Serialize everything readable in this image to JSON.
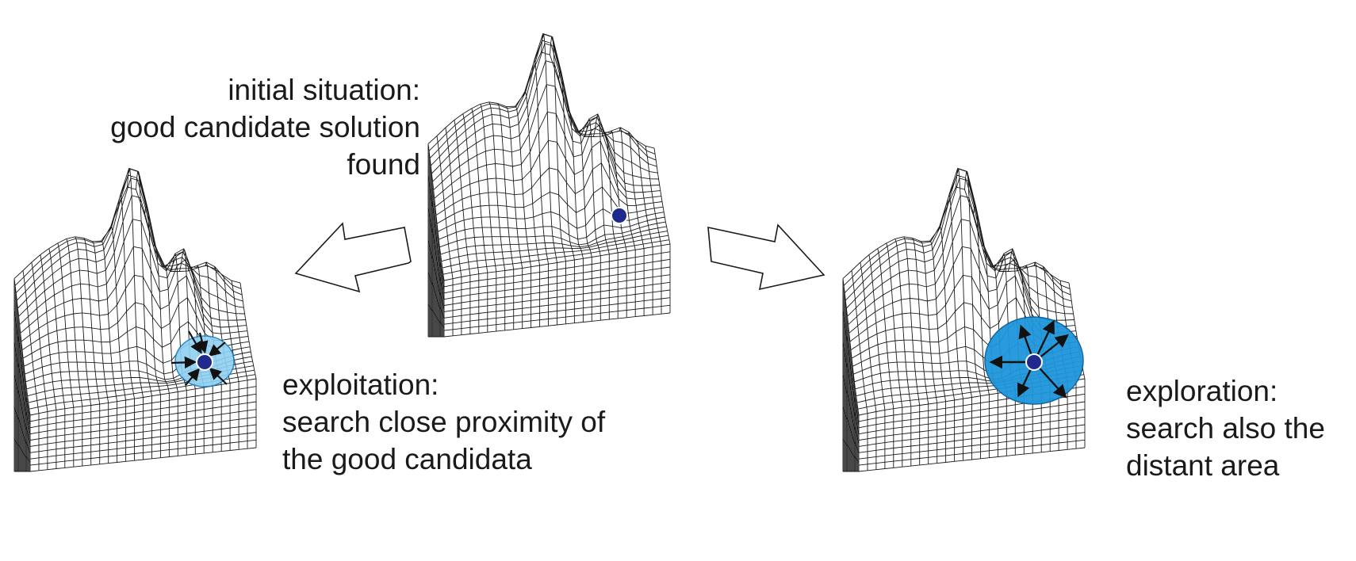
{
  "captions": {
    "initial": [
      "initial situation:",
      "good candidate solution",
      "found"
    ],
    "exploitation": [
      "exploitation:",
      "search close proximity of",
      "the good candidata"
    ],
    "exploration": [
      "exploration:",
      "search also the",
      "distant area"
    ]
  },
  "colors": {
    "mesh": "#1a1a1a",
    "candidate_dot": "#1f2a8c",
    "exploitation_region": "#8fd0f2",
    "exploration_region": "#1e96dc",
    "arrow_fill": "#ffffff"
  },
  "panels": [
    "exploitation-landscape",
    "initial-landscape",
    "exploration-landscape"
  ]
}
